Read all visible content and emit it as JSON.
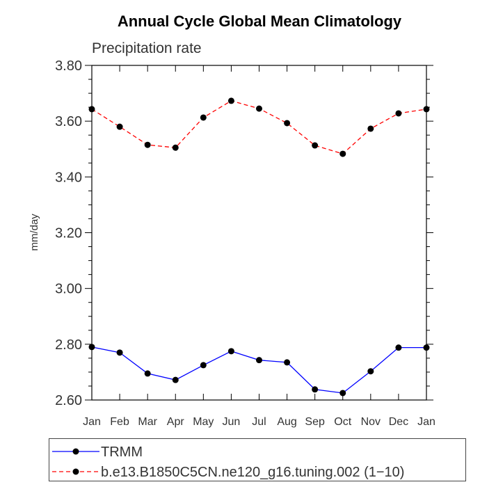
{
  "chart_data": {
    "type": "line",
    "title": "Annual Cycle Global Mean Climatology",
    "subtitle": "Precipitation rate",
    "xlabel": "",
    "ylabel": "mm/day",
    "categories": [
      "Jan",
      "Feb",
      "Mar",
      "Apr",
      "May",
      "Jun",
      "Jul",
      "Aug",
      "Sep",
      "Oct",
      "Nov",
      "Dec",
      "Jan"
    ],
    "ylim": [
      2.6,
      3.8
    ],
    "yticks": [
      "2.60",
      "2.80",
      "3.00",
      "3.20",
      "3.40",
      "3.60",
      "3.80"
    ],
    "grid": false,
    "legend_position": "bottom",
    "series": [
      {
        "name": "TRMM",
        "color": "#0000ff",
        "style": "solid",
        "values": [
          2.79,
          2.77,
          2.695,
          2.672,
          2.725,
          2.775,
          2.743,
          2.735,
          2.638,
          2.625,
          2.703,
          2.788,
          2.788
        ]
      },
      {
        "name": "b.e13.B1850C5CN.ne120_g16.tuning.002 (1−10)",
        "color": "#ff0000",
        "style": "dashed",
        "values": [
          3.643,
          3.58,
          3.515,
          3.505,
          3.613,
          3.673,
          3.645,
          3.593,
          3.513,
          3.483,
          3.573,
          3.628,
          3.643
        ]
      }
    ]
  }
}
